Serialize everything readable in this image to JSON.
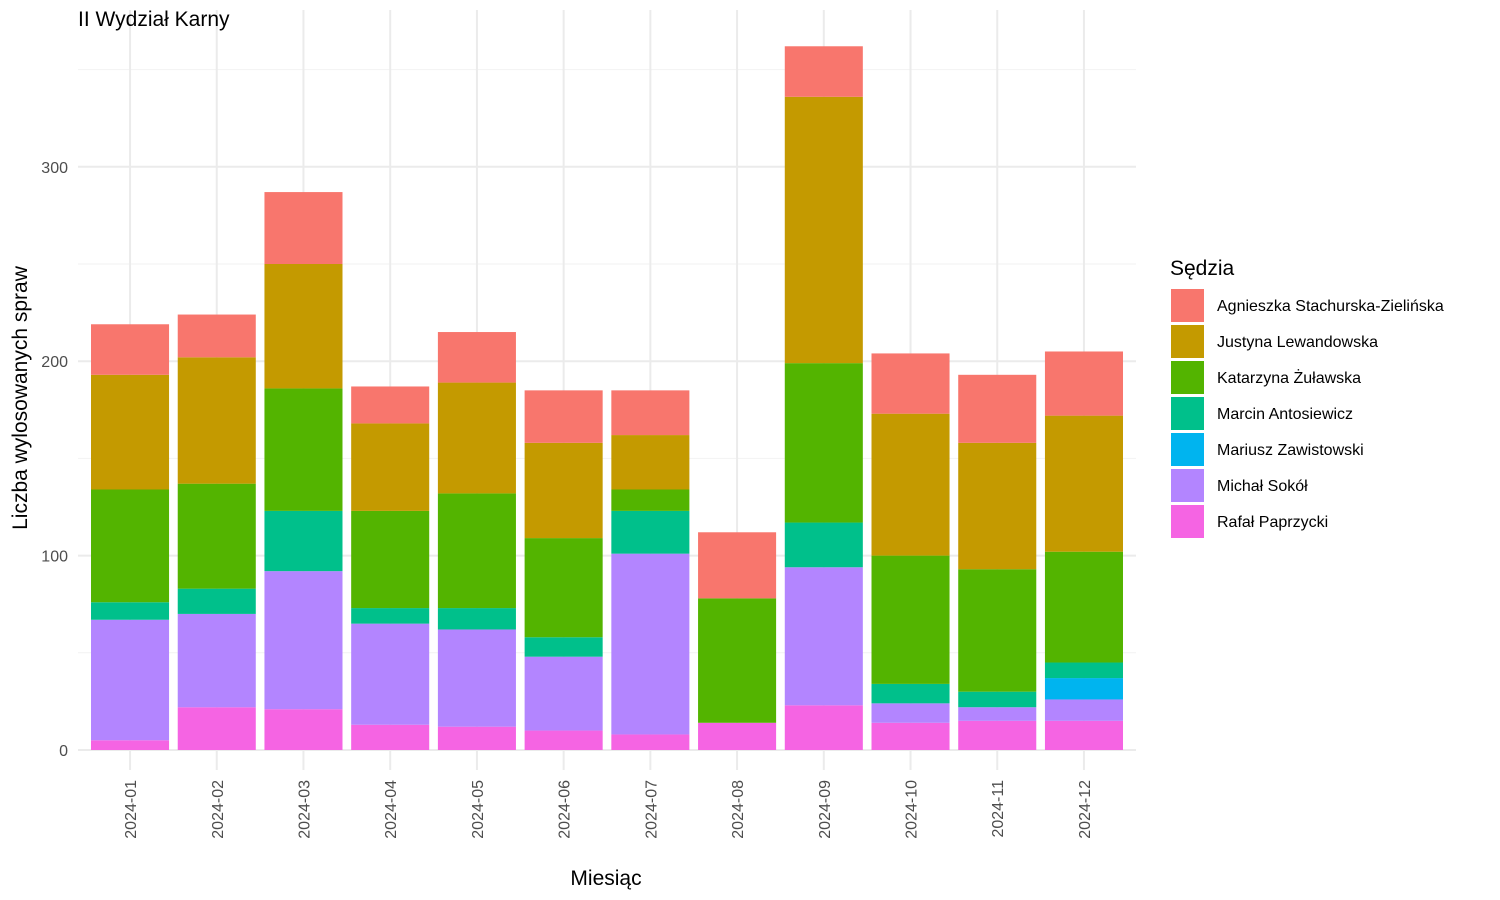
{
  "chart_data": {
    "type": "bar",
    "stacked": true,
    "title": "II Wydział Karny",
    "xlabel": "Miesiąc",
    "ylabel": "Liczba wylosowanych spraw",
    "ylim": [
      0,
      370
    ],
    "yticks": [
      0,
      100,
      200,
      300
    ],
    "grid": true,
    "legend_position": "right",
    "legend_title": "Sędzia",
    "categories": [
      "2024-01",
      "2024-02",
      "2024-03",
      "2024-04",
      "2024-05",
      "2024-06",
      "2024-07",
      "2024-08",
      "2024-09",
      "2024-10",
      "2024-11",
      "2024-12"
    ],
    "series": [
      {
        "name": "Rafał Paprzycki",
        "color": "#F564E3",
        "values": [
          5,
          22,
          21,
          13,
          12,
          10,
          8,
          14,
          23,
          14,
          15,
          15
        ]
      },
      {
        "name": "Michał Sokół",
        "color": "#B385FF",
        "values": [
          62,
          48,
          71,
          52,
          50,
          38,
          93,
          0,
          71,
          10,
          7,
          11
        ]
      },
      {
        "name": "Mariusz Zawistowski",
        "color": "#00B4EF",
        "values": [
          0,
          0,
          0,
          0,
          0,
          0,
          0,
          0,
          0,
          0,
          0,
          11
        ]
      },
      {
        "name": "Marcin Antosiewicz",
        "color": "#00C08B",
        "values": [
          9,
          13,
          31,
          8,
          11,
          10,
          22,
          0,
          23,
          10,
          8,
          8
        ]
      },
      {
        "name": "Katarzyna Żuławska",
        "color": "#53B400",
        "values": [
          58,
          54,
          63,
          50,
          59,
          51,
          11,
          64,
          82,
          66,
          63,
          57
        ]
      },
      {
        "name": "Justyna Lewandowska",
        "color": "#C49A00",
        "values": [
          59,
          65,
          64,
          45,
          57,
          49,
          28,
          0,
          137,
          73,
          65,
          70
        ]
      },
      {
        "name": "Agnieszka Stachurska-Zielińska",
        "color": "#F8766D",
        "values": [
          26,
          22,
          37,
          19,
          26,
          27,
          23,
          34,
          26,
          31,
          35,
          33
        ]
      }
    ]
  }
}
